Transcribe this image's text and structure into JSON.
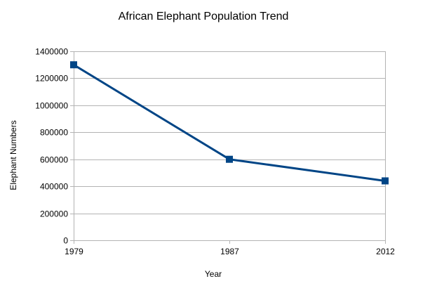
{
  "chart_data": {
    "type": "line",
    "title": "African Elephant Population Trend",
    "xlabel": "Year",
    "ylabel": "Elephant Numbers",
    "categories": [
      "1979",
      "1987",
      "2012"
    ],
    "series": [
      {
        "values": [
          1300000,
          600000,
          440000
        ]
      }
    ],
    "ylim": [
      0,
      1400000
    ],
    "yticks": [
      "0",
      "200000",
      "400000",
      "600000",
      "800000",
      "1000000",
      "1200000",
      "1400000"
    ],
    "grid": "horizontal",
    "legend": "none",
    "colors": {
      "line": "#004586",
      "marker": "#004586",
      "grid": "#b3b3b3",
      "axis": "#b3b3b3"
    },
    "marker": "square-marker"
  }
}
